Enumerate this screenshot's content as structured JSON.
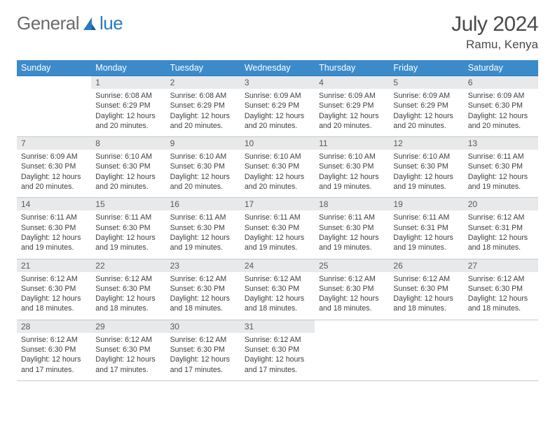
{
  "logo": {
    "part1": "General",
    "part2": "lue"
  },
  "header": {
    "month_title": "July 2024",
    "location": "Ramu, Kenya"
  },
  "colors": {
    "header_bg": "#3b8bcb",
    "header_text": "#ffffff",
    "daynum_bg": "#e8e9ea",
    "body_text": "#404040",
    "logo_gray": "#6b6b6b",
    "logo_blue": "#2a79c2",
    "border": "#c8c8c8"
  },
  "weekdays": [
    "Sunday",
    "Monday",
    "Tuesday",
    "Wednesday",
    "Thursday",
    "Friday",
    "Saturday"
  ],
  "weeks": [
    {
      "nums": [
        "",
        "1",
        "2",
        "3",
        "4",
        "5",
        "6"
      ],
      "cells": [
        null,
        {
          "sunrise": "Sunrise: 6:08 AM",
          "sunset": "Sunset: 6:29 PM",
          "daylight": "Daylight: 12 hours and 20 minutes."
        },
        {
          "sunrise": "Sunrise: 6:08 AM",
          "sunset": "Sunset: 6:29 PM",
          "daylight": "Daylight: 12 hours and 20 minutes."
        },
        {
          "sunrise": "Sunrise: 6:09 AM",
          "sunset": "Sunset: 6:29 PM",
          "daylight": "Daylight: 12 hours and 20 minutes."
        },
        {
          "sunrise": "Sunrise: 6:09 AM",
          "sunset": "Sunset: 6:29 PM",
          "daylight": "Daylight: 12 hours and 20 minutes."
        },
        {
          "sunrise": "Sunrise: 6:09 AM",
          "sunset": "Sunset: 6:29 PM",
          "daylight": "Daylight: 12 hours and 20 minutes."
        },
        {
          "sunrise": "Sunrise: 6:09 AM",
          "sunset": "Sunset: 6:30 PM",
          "daylight": "Daylight: 12 hours and 20 minutes."
        }
      ]
    },
    {
      "nums": [
        "7",
        "8",
        "9",
        "10",
        "11",
        "12",
        "13"
      ],
      "cells": [
        {
          "sunrise": "Sunrise: 6:09 AM",
          "sunset": "Sunset: 6:30 PM",
          "daylight": "Daylight: 12 hours and 20 minutes."
        },
        {
          "sunrise": "Sunrise: 6:10 AM",
          "sunset": "Sunset: 6:30 PM",
          "daylight": "Daylight: 12 hours and 20 minutes."
        },
        {
          "sunrise": "Sunrise: 6:10 AM",
          "sunset": "Sunset: 6:30 PM",
          "daylight": "Daylight: 12 hours and 20 minutes."
        },
        {
          "sunrise": "Sunrise: 6:10 AM",
          "sunset": "Sunset: 6:30 PM",
          "daylight": "Daylight: 12 hours and 20 minutes."
        },
        {
          "sunrise": "Sunrise: 6:10 AM",
          "sunset": "Sunset: 6:30 PM",
          "daylight": "Daylight: 12 hours and 19 minutes."
        },
        {
          "sunrise": "Sunrise: 6:10 AM",
          "sunset": "Sunset: 6:30 PM",
          "daylight": "Daylight: 12 hours and 19 minutes."
        },
        {
          "sunrise": "Sunrise: 6:11 AM",
          "sunset": "Sunset: 6:30 PM",
          "daylight": "Daylight: 12 hours and 19 minutes."
        }
      ]
    },
    {
      "nums": [
        "14",
        "15",
        "16",
        "17",
        "18",
        "19",
        "20"
      ],
      "cells": [
        {
          "sunrise": "Sunrise: 6:11 AM",
          "sunset": "Sunset: 6:30 PM",
          "daylight": "Daylight: 12 hours and 19 minutes."
        },
        {
          "sunrise": "Sunrise: 6:11 AM",
          "sunset": "Sunset: 6:30 PM",
          "daylight": "Daylight: 12 hours and 19 minutes."
        },
        {
          "sunrise": "Sunrise: 6:11 AM",
          "sunset": "Sunset: 6:30 PM",
          "daylight": "Daylight: 12 hours and 19 minutes."
        },
        {
          "sunrise": "Sunrise: 6:11 AM",
          "sunset": "Sunset: 6:30 PM",
          "daylight": "Daylight: 12 hours and 19 minutes."
        },
        {
          "sunrise": "Sunrise: 6:11 AM",
          "sunset": "Sunset: 6:30 PM",
          "daylight": "Daylight: 12 hours and 19 minutes."
        },
        {
          "sunrise": "Sunrise: 6:11 AM",
          "sunset": "Sunset: 6:31 PM",
          "daylight": "Daylight: 12 hours and 19 minutes."
        },
        {
          "sunrise": "Sunrise: 6:12 AM",
          "sunset": "Sunset: 6:31 PM",
          "daylight": "Daylight: 12 hours and 18 minutes."
        }
      ]
    },
    {
      "nums": [
        "21",
        "22",
        "23",
        "24",
        "25",
        "26",
        "27"
      ],
      "cells": [
        {
          "sunrise": "Sunrise: 6:12 AM",
          "sunset": "Sunset: 6:30 PM",
          "daylight": "Daylight: 12 hours and 18 minutes."
        },
        {
          "sunrise": "Sunrise: 6:12 AM",
          "sunset": "Sunset: 6:30 PM",
          "daylight": "Daylight: 12 hours and 18 minutes."
        },
        {
          "sunrise": "Sunrise: 6:12 AM",
          "sunset": "Sunset: 6:30 PM",
          "daylight": "Daylight: 12 hours and 18 minutes."
        },
        {
          "sunrise": "Sunrise: 6:12 AM",
          "sunset": "Sunset: 6:30 PM",
          "daylight": "Daylight: 12 hours and 18 minutes."
        },
        {
          "sunrise": "Sunrise: 6:12 AM",
          "sunset": "Sunset: 6:30 PM",
          "daylight": "Daylight: 12 hours and 18 minutes."
        },
        {
          "sunrise": "Sunrise: 6:12 AM",
          "sunset": "Sunset: 6:30 PM",
          "daylight": "Daylight: 12 hours and 18 minutes."
        },
        {
          "sunrise": "Sunrise: 6:12 AM",
          "sunset": "Sunset: 6:30 PM",
          "daylight": "Daylight: 12 hours and 18 minutes."
        }
      ]
    },
    {
      "nums": [
        "28",
        "29",
        "30",
        "31",
        "",
        "",
        ""
      ],
      "cells": [
        {
          "sunrise": "Sunrise: 6:12 AM",
          "sunset": "Sunset: 6:30 PM",
          "daylight": "Daylight: 12 hours and 17 minutes."
        },
        {
          "sunrise": "Sunrise: 6:12 AM",
          "sunset": "Sunset: 6:30 PM",
          "daylight": "Daylight: 12 hours and 17 minutes."
        },
        {
          "sunrise": "Sunrise: 6:12 AM",
          "sunset": "Sunset: 6:30 PM",
          "daylight": "Daylight: 12 hours and 17 minutes."
        },
        {
          "sunrise": "Sunrise: 6:12 AM",
          "sunset": "Sunset: 6:30 PM",
          "daylight": "Daylight: 12 hours and 17 minutes."
        },
        null,
        null,
        null
      ]
    }
  ]
}
